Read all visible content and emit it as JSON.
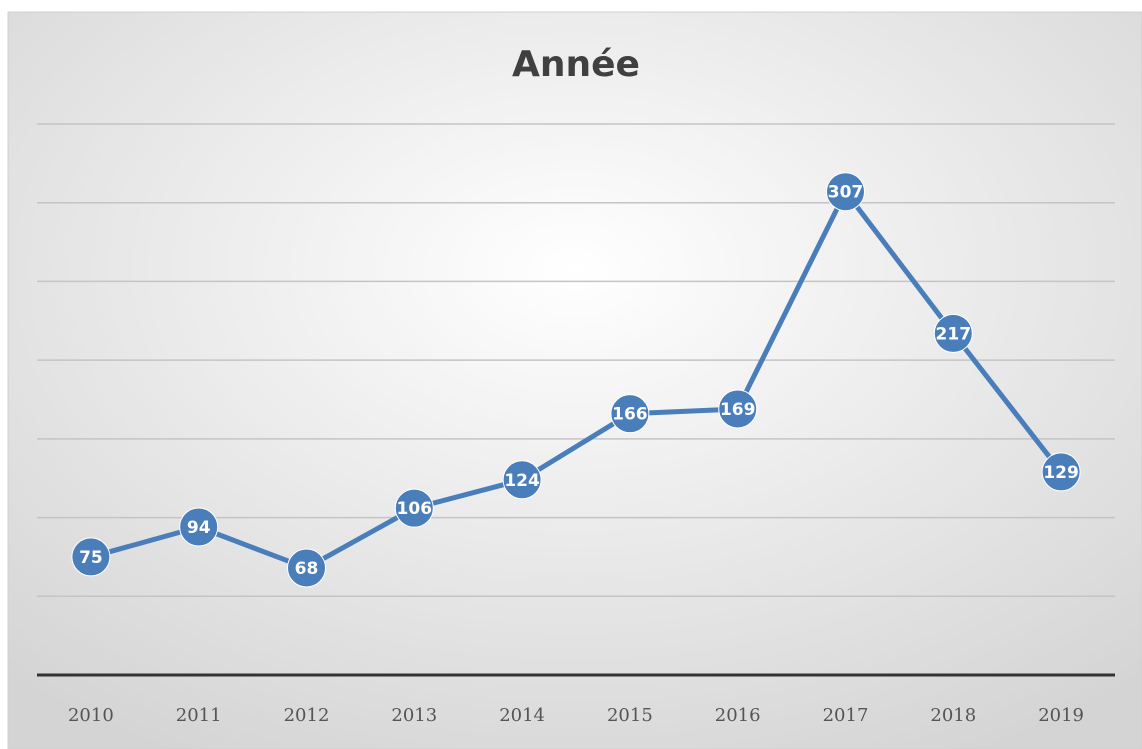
{
  "chart_data": {
    "type": "line",
    "title": "Année",
    "categories": [
      "2010",
      "2011",
      "2012",
      "2013",
      "2014",
      "2015",
      "2016",
      "2017",
      "2018",
      "2019"
    ],
    "values": [
      75,
      94,
      68,
      106,
      124,
      166,
      169,
      307,
      217,
      129
    ],
    "color": "#4a7ebb",
    "ylim": [
      0,
      350
    ],
    "yticks": [
      0,
      50,
      100,
      150,
      200,
      250,
      300,
      350
    ],
    "grid": true
  }
}
